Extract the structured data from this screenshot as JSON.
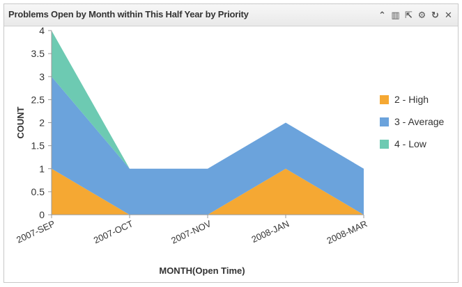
{
  "widget": {
    "title": "Problems Open by Month within This Half Year by Priority",
    "toolbar": [
      {
        "name": "collapse-icon",
        "glyph": "⌃"
      },
      {
        "name": "chart-type-icon",
        "glyph": "▥"
      },
      {
        "name": "popout-icon",
        "glyph": "⇱"
      },
      {
        "name": "gear-icon",
        "glyph": "⚙"
      },
      {
        "name": "refresh-icon",
        "glyph": "↻"
      },
      {
        "name": "close-icon",
        "glyph": "✕"
      }
    ]
  },
  "chart_data": {
    "type": "area",
    "stacked": true,
    "title": "",
    "xlabel": "MONTH(Open Time)",
    "ylabel": "COUNT",
    "categories": [
      "2007-SEP",
      "2007-OCT",
      "2007-NOV",
      "2008-JAN",
      "2008-MAR"
    ],
    "ylim": [
      0,
      4
    ],
    "yticks": [
      "0",
      "0.5",
      "1",
      "1.5",
      "2",
      "2.5",
      "3",
      "3.5",
      "4"
    ],
    "grid": false,
    "legend_position": "right",
    "series": [
      {
        "name": "2 - High",
        "color": "#f5a833",
        "values": [
          1,
          0,
          0,
          1,
          0
        ]
      },
      {
        "name": "3 - Average",
        "color": "#6ba3dc",
        "values": [
          2,
          1,
          1,
          1,
          1
        ]
      },
      {
        "name": "4 - Low",
        "color": "#6dcab2",
        "values": [
          1,
          0,
          0,
          0,
          0
        ]
      }
    ]
  }
}
